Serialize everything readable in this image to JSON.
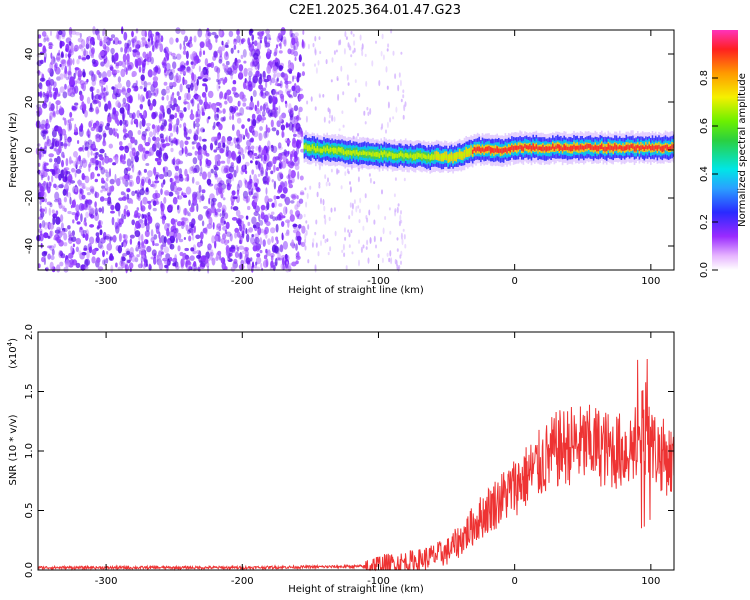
{
  "title": "C2E1.2025.364.01.47.G23",
  "chart_data": [
    {
      "type": "heatmap",
      "xlabel": "Height of straight line (km)",
      "ylabel": "Frequency (Hz)",
      "xlim": [
        -350,
        117
      ],
      "ylim": [
        -50,
        50
      ],
      "xticks": [
        "-300",
        "-200",
        "-100",
        "0",
        "100"
      ],
      "xtick_values": [
        -300,
        -200,
        -100,
        0,
        100
      ],
      "yticks": [
        "-40",
        "-20",
        "0",
        "20",
        "40"
      ],
      "ytick_values": [
        -40,
        -20,
        0,
        20,
        40
      ],
      "colorbar": {
        "label": "Normalized spectral amplitude",
        "range": [
          0,
          1
        ],
        "ticks": [
          "0.0",
          "0.2",
          "0.4",
          "0.6",
          "0.8"
        ],
        "tick_values": [
          0,
          0.2,
          0.4,
          0.6,
          0.8
        ]
      },
      "signal_track": [
        {
          "x": -155,
          "y": 1
        },
        {
          "x": -120,
          "y": -1
        },
        {
          "x": -90,
          "y": -2
        },
        {
          "x": -60,
          "y": -3
        },
        {
          "x": -45,
          "y": -3
        },
        {
          "x": -30,
          "y": 0
        },
        {
          "x": -10,
          "y": 0
        },
        {
          "x": 0,
          "y": 1
        },
        {
          "x": 30,
          "y": 1
        },
        {
          "x": 60,
          "y": 1
        },
        {
          "x": 90,
          "y": 1
        },
        {
          "x": 117,
          "y": 1
        }
      ],
      "noise_region_x": [
        -350,
        -155
      ]
    },
    {
      "type": "line",
      "xlabel": "Height of straight line (km)",
      "ylabel": "SNR (10 * v/v)",
      "yscale_label": "(x10",
      "yscale_exp": "4",
      "yscale_close": ")",
      "xlim": [
        -350,
        117
      ],
      "ylim": [
        0,
        2.0
      ],
      "xticks": [
        "-300",
        "-200",
        "-100",
        "0",
        "100"
      ],
      "xtick_values": [
        -300,
        -200,
        -100,
        0,
        100
      ],
      "yticks": [
        "0.0",
        "0.5",
        "1.0",
        "1.5",
        "2.0"
      ],
      "ytick_values": [
        0,
        0.5,
        1.0,
        1.5,
        2.0
      ],
      "series": [
        {
          "color": "#ee3333",
          "x": [
            -350,
            -200,
            -110,
            -90,
            -70,
            -50,
            -40,
            -30,
            -20,
            -10,
            0,
            10,
            20,
            30,
            40,
            50,
            60,
            70,
            80,
            90,
            95,
            100,
            105,
            110,
            117
          ],
          "y": [
            0.02,
            0.02,
            0.03,
            0.05,
            0.08,
            0.15,
            0.25,
            0.38,
            0.5,
            0.6,
            0.7,
            0.8,
            0.9,
            1.0,
            1.05,
            1.05,
            1.05,
            1.0,
            1.0,
            1.05,
            1.2,
            1.05,
            1.0,
            0.95,
            0.9
          ]
        }
      ]
    }
  ]
}
